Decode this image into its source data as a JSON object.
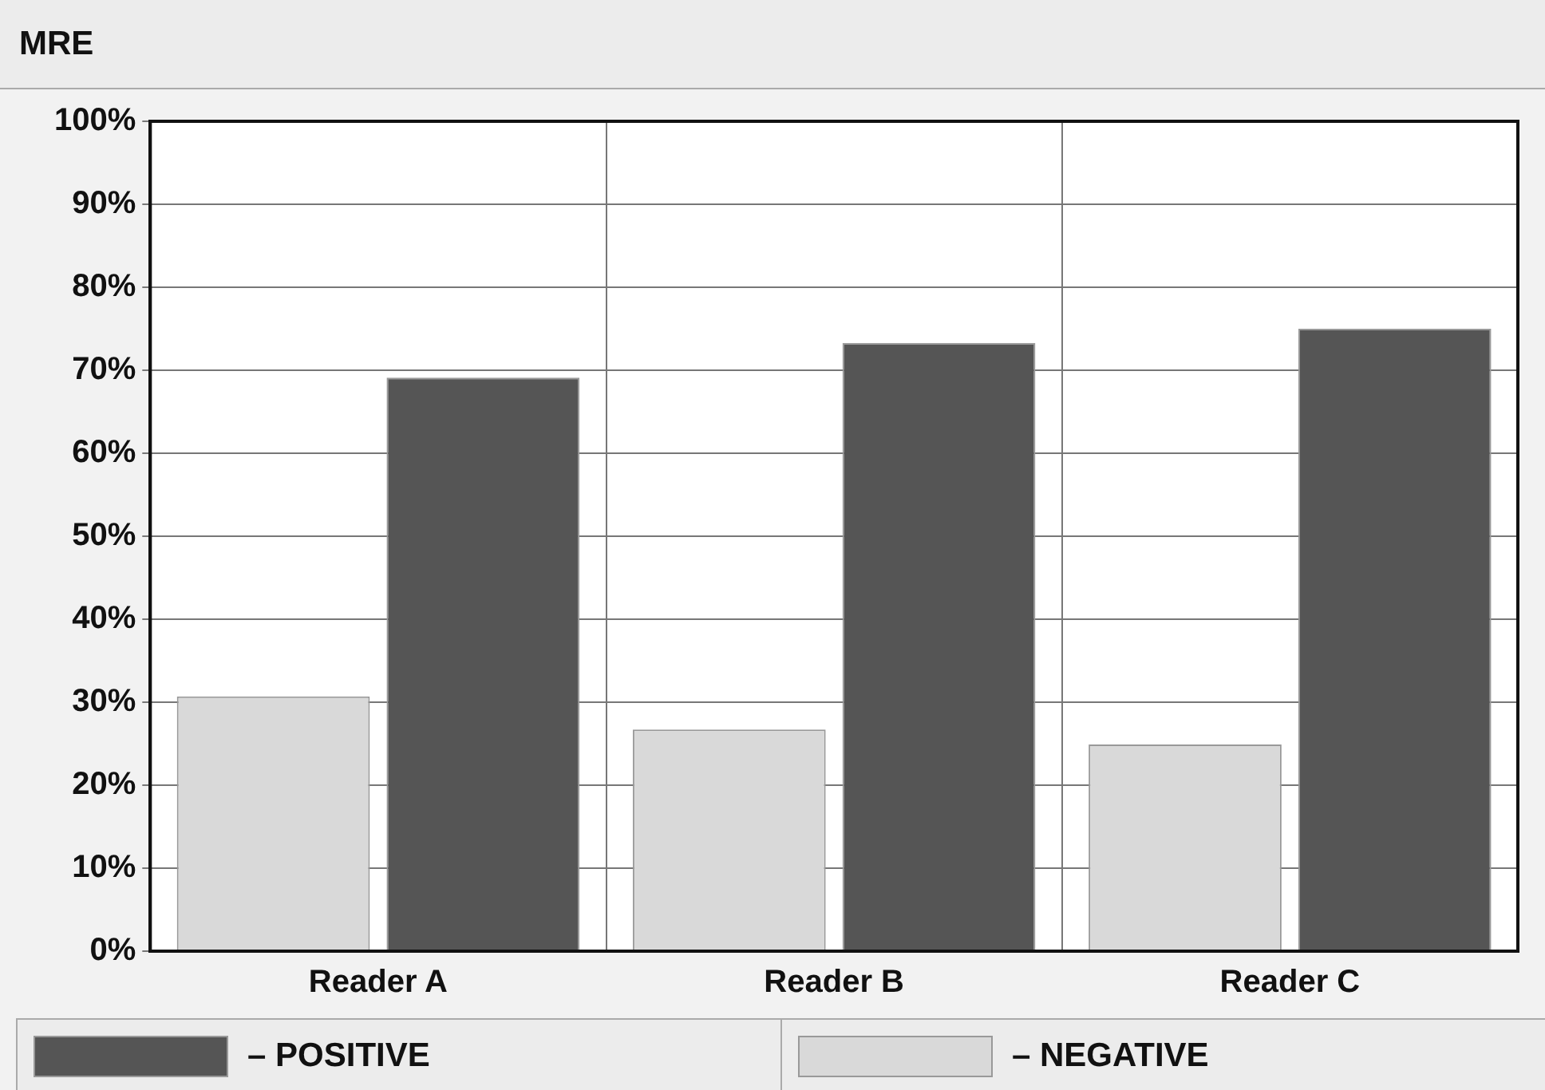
{
  "chart_data": {
    "type": "bar",
    "title": "MRE",
    "categories": [
      "Reader A",
      "Reader B",
      "Reader C"
    ],
    "series": [
      {
        "name": "– NEGATIVE",
        "color": "#d9d9d9",
        "values": [
          30.7,
          26.7,
          24.9
        ]
      },
      {
        "name": "– POSITIVE",
        "color": "#555555",
        "values": [
          69.1,
          73.3,
          75.0
        ]
      }
    ],
    "ylim": [
      0,
      100
    ],
    "yticks": [
      {
        "value": 0,
        "label": "0%"
      },
      {
        "value": 10,
        "label": "10%"
      },
      {
        "value": 20,
        "label": "20%"
      },
      {
        "value": 30,
        "label": "30%"
      },
      {
        "value": 40,
        "label": "40%"
      },
      {
        "value": 50,
        "label": "50%"
      },
      {
        "value": 60,
        "label": "60%"
      },
      {
        "value": 70,
        "label": "70%"
      },
      {
        "value": 80,
        "label": "80%"
      },
      {
        "value": 90,
        "label": "90%"
      },
      {
        "value": 100,
        "label": "100%"
      }
    ],
    "grid": true,
    "legend": "bottom"
  }
}
